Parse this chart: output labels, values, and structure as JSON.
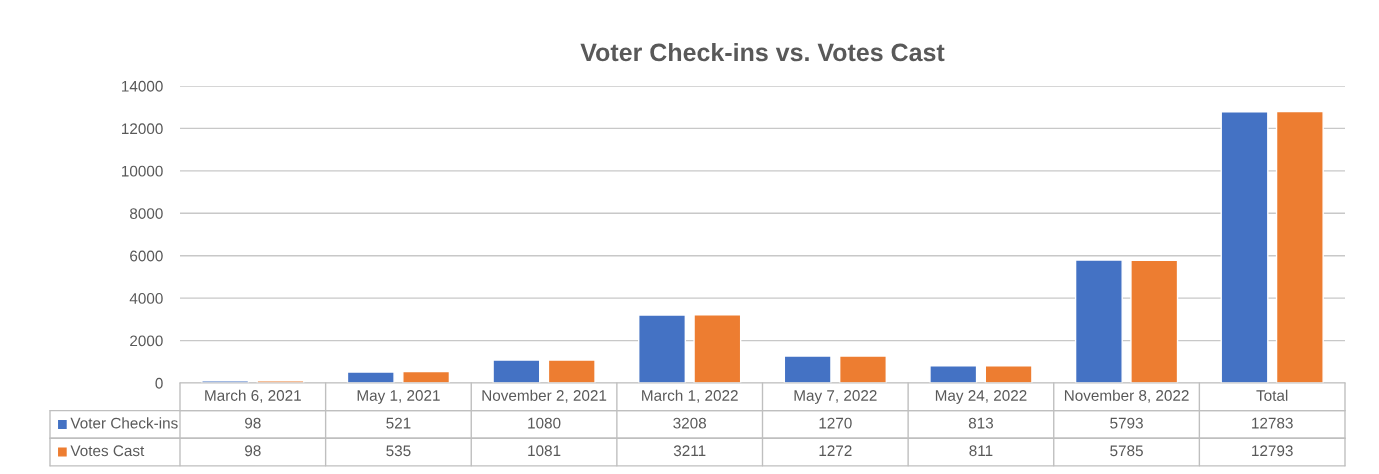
{
  "chart_data": {
    "type": "bar",
    "title": "Voter Check-ins vs. Votes Cast",
    "categories": [
      "March 6, 2021",
      "May 1, 2021",
      "November 2, 2021",
      "March 1, 2022",
      "May 7, 2022",
      "May 24, 2022",
      "November 8, 2022",
      "Total"
    ],
    "series": [
      {
        "name": "Voter Check-ins",
        "color": "#4472c4",
        "values": [
          98,
          521,
          1080,
          3208,
          1270,
          813,
          5793,
          12783
        ]
      },
      {
        "name": "Votes Cast",
        "color": "#ed7d31",
        "values": [
          98,
          535,
          1081,
          3211,
          1272,
          811,
          5785,
          12793
        ]
      }
    ],
    "ylim": [
      0,
      14000
    ],
    "yticks": [
      0,
      2000,
      4000,
      6000,
      8000,
      10000,
      12000,
      14000
    ],
    "grid": "y",
    "legend": "bottom",
    "data_labels": true
  }
}
